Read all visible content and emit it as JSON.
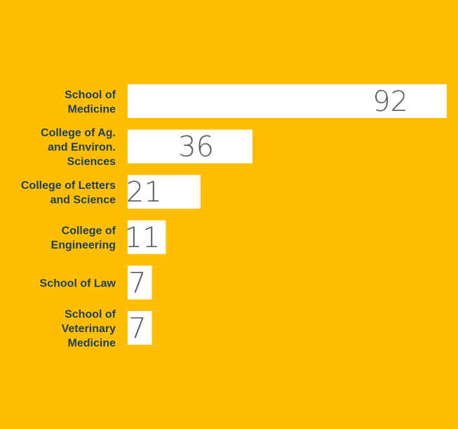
{
  "colors": {
    "background": "#FFBF00",
    "bar": "#FFFFFF",
    "label_text": "#1B3F5C",
    "value_text": "#5A5A5A"
  },
  "chart_data": {
    "type": "bar",
    "orientation": "horizontal",
    "categories": [
      [
        "School of",
        "Medicine"
      ],
      [
        "College of Ag.",
        "and Environ.",
        "Sciences"
      ],
      [
        "College of Letters",
        "and Science"
      ],
      [
        "College of",
        "Engineering"
      ],
      [
        "School of Law"
      ],
      [
        "School of",
        "Veterinary",
        "Medicine"
      ]
    ],
    "values": [
      92,
      36,
      21,
      11,
      7,
      7
    ],
    "data_labels": [
      "92",
      "36",
      "21",
      "11",
      "7",
      "7"
    ],
    "title": "",
    "xlabel": "",
    "ylabel": "",
    "xlim": [
      0,
      92
    ],
    "grid": false,
    "legend": "none"
  }
}
